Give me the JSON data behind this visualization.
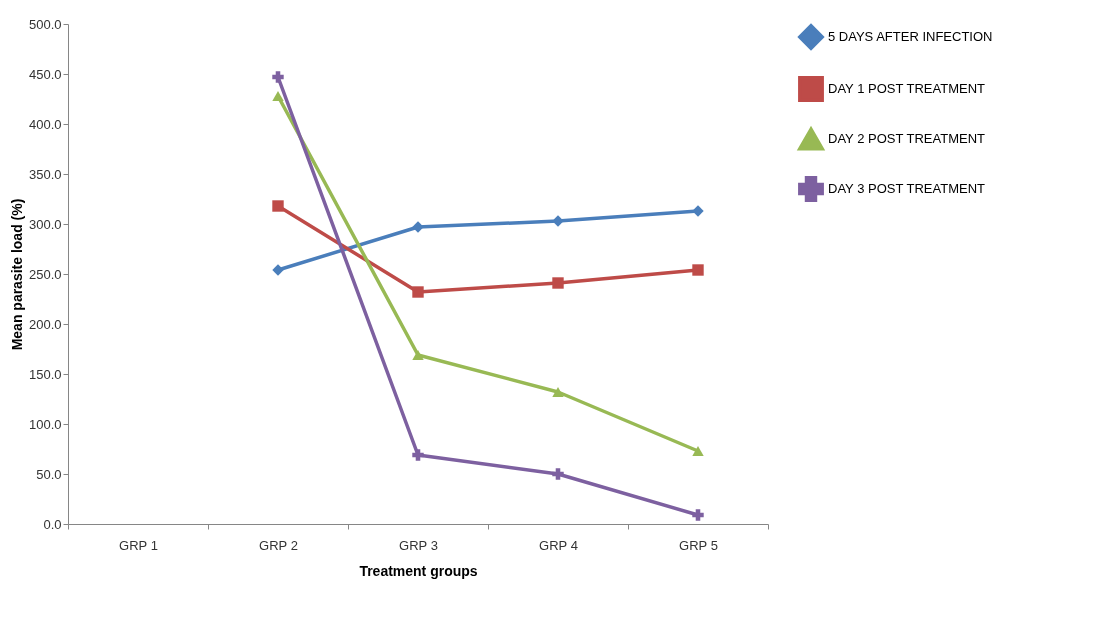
{
  "chart_data": {
    "type": "line",
    "xlabel": "Treatment groups",
    "ylabel": "Mean parasite load (%)",
    "categories": [
      "GRP 1",
      "GRP 2",
      "GRP 3",
      "GRP 4",
      "GRP 5"
    ],
    "series": [
      {
        "name": "5 DAYS AFTER INFECTION",
        "color": "#4a7ebb",
        "marker": "diamond",
        "values": [
          null,
          254,
          297,
          303,
          313
        ]
      },
      {
        "name": "DAY 1 POST TREATMENT",
        "color": "#be4b48",
        "marker": "square",
        "values": [
          null,
          318,
          232,
          241,
          254
        ]
      },
      {
        "name": "DAY 2 POST TREATMENT",
        "color": "#98b954",
        "marker": "triangle",
        "values": [
          null,
          428,
          169,
          132,
          73
        ]
      },
      {
        "name": "DAY 3 POST TREATMENT",
        "color": "#7d60a0",
        "marker": "cross",
        "values": [
          null,
          447,
          69,
          50,
          9
        ]
      }
    ],
    "ylim": [
      0,
      500
    ],
    "yticks": [
      {
        "value": 0,
        "label": "0.0"
      },
      {
        "value": 50,
        "label": "50.0"
      },
      {
        "value": 100,
        "label": "100.0"
      },
      {
        "value": 150,
        "label": "150.0"
      },
      {
        "value": 200,
        "label": "200.0"
      },
      {
        "value": 250,
        "label": "250.0"
      },
      {
        "value": 300,
        "label": "300.0"
      },
      {
        "value": 350,
        "label": "350.0"
      },
      {
        "value": 400,
        "label": "400.0"
      },
      {
        "value": 450,
        "label": "450.0"
      },
      {
        "value": 500,
        "label": "500.0"
      }
    ],
    "grid": false,
    "legend": "right",
    "line_style": "solid"
  }
}
